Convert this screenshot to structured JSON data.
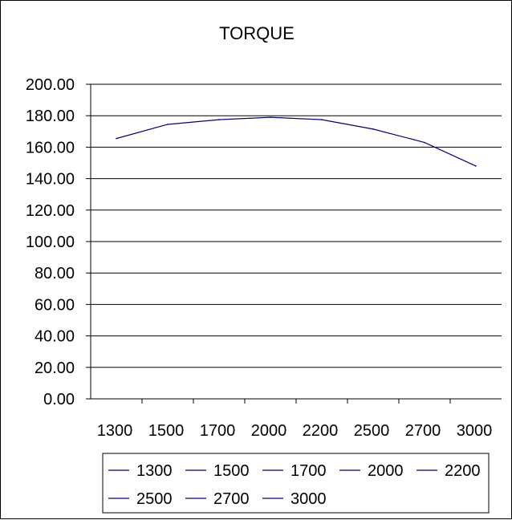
{
  "chart_data": {
    "type": "line",
    "title": "TORQUE",
    "categories": [
      "1300",
      "1500",
      "1700",
      "2000",
      "2200",
      "2500",
      "2700",
      "3000"
    ],
    "series": [
      {
        "values": [
          165.5,
          174.5,
          177.5,
          179,
          177.5,
          171.5,
          163,
          148
        ]
      }
    ],
    "ylim": [
      0,
      200
    ],
    "yticks": [
      "0.00",
      "20.00",
      "40.00",
      "60.00",
      "80.00",
      "100.00",
      "120.00",
      "140.00",
      "160.00",
      "180.00",
      "200.00"
    ],
    "grid": "horizontal",
    "legend": {
      "placement": "bottom",
      "entries": [
        "1300",
        "1500",
        "1700",
        "2000",
        "2200",
        "2500",
        "2700",
        "3000"
      ]
    },
    "line_color": "#000080"
  }
}
